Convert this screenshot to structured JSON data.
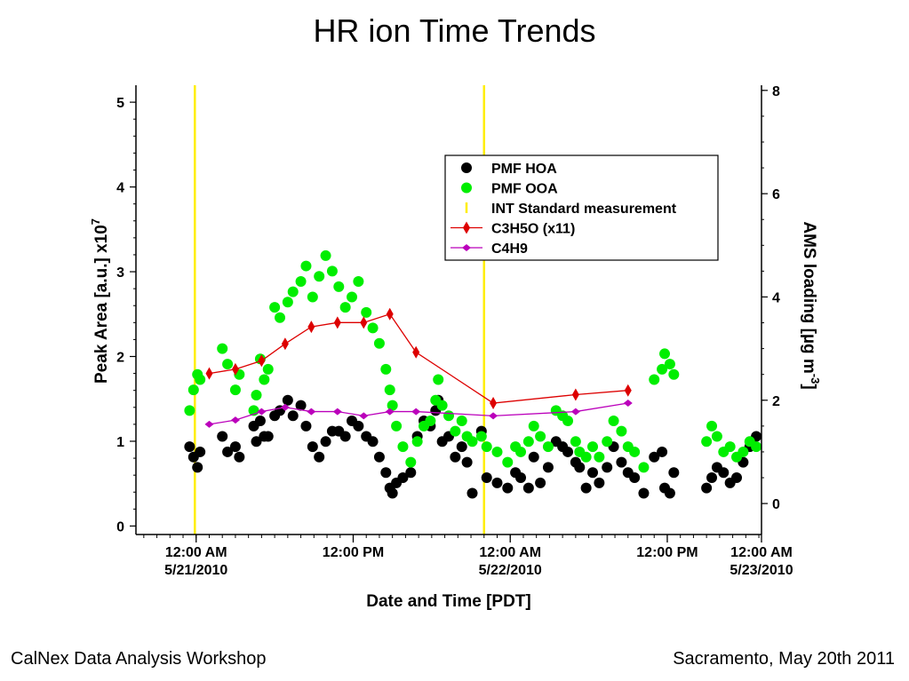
{
  "slide": {
    "title": "HR ion Time Trends",
    "footer_left": "CalNex Data Analysis Workshop",
    "footer_right": "Sacramento, May 20th 2011"
  },
  "colors": {
    "hoa": "#000000",
    "ooa": "#00ee00",
    "int": "#ffee00",
    "c3h5o": "#dd0000",
    "c4h9": "#bb00bb"
  },
  "chart_data": {
    "type": "scatter",
    "xlabel": "Date and Time [PDT]",
    "x_unit": "hours since 5/20/2010 00:00 PDT",
    "xlim": [
      19.4,
      67.2
    ],
    "x_ticks": [
      {
        "x": 24,
        "line1": "12:00 AM",
        "line2": "5/21/2010"
      },
      {
        "x": 36,
        "line1": "12:00 PM",
        "line2": ""
      },
      {
        "x": 48,
        "line1": "12:00 AM",
        "line2": "5/22/2010"
      },
      {
        "x": 60,
        "line1": "12:00 PM",
        "line2": ""
      },
      {
        "x": 72,
        "line1": "12:00 AM",
        "line2": "5/23/2010"
      }
    ],
    "y_left": {
      "label": "Peak Area [a.u.] x10",
      "exponent": "7",
      "lim": [
        -0.1,
        5.2
      ],
      "ticks": [
        0,
        1,
        2,
        3,
        4,
        5
      ]
    },
    "y_right": {
      "label": "AMS loading [µg m",
      "exponent": "-3",
      "label_close": "]",
      "lim": [
        -0.6,
        8.1
      ],
      "ticks": [
        0,
        2,
        4,
        6,
        8
      ]
    },
    "legend": {
      "position": "top-right",
      "entries": [
        {
          "key": "hoa",
          "label": "PMF HOA"
        },
        {
          "key": "ooa",
          "label": "PMF OOA"
        },
        {
          "key": "int",
          "label": "INT Standard measurement"
        },
        {
          "key": "c3h5o",
          "label": "C3H5O (x11)"
        },
        {
          "key": "c4h9",
          "label": "C4H9"
        }
      ]
    },
    "int_standard_x": [
      23.9,
      46.0
    ],
    "series": [
      {
        "name": "PMF HOA",
        "axis": "right",
        "x": [
          23.5,
          23.8,
          24.1,
          24.3,
          26.0,
          26.4,
          27.0,
          27.3,
          28.4,
          28.6,
          28.9,
          29.2,
          29.5,
          30.0,
          30.4,
          31.0,
          31.4,
          32.0,
          32.4,
          32.9,
          33.4,
          33.9,
          34.4,
          34.9,
          35.4,
          35.9,
          36.4,
          37.0,
          37.5,
          38.0,
          38.5,
          38.8,
          39.0,
          39.3,
          39.8,
          40.4,
          40.9,
          41.4,
          41.9,
          42.3,
          42.5,
          42.8,
          43.3,
          43.8,
          44.3,
          44.7,
          45.1,
          45.8,
          46.2,
          47.0,
          47.8,
          48.4,
          48.8,
          49.4,
          49.8,
          50.3,
          50.9,
          51.5,
          52.0,
          52.4,
          53.0,
          53.3,
          53.8,
          54.3,
          54.8,
          55.4,
          55.9,
          56.5,
          57.0,
          57.5,
          58.2,
          59.0,
          59.6,
          59.8,
          60.2,
          60.5,
          63.0,
          63.4,
          63.8,
          64.3,
          64.8,
          65.3,
          65.8,
          66.3,
          66.8
        ],
        "y": [
          1.1,
          0.9,
          0.7,
          1.0,
          1.3,
          1.0,
          1.1,
          0.9,
          1.5,
          1.2,
          1.6,
          1.3,
          1.3,
          1.7,
          1.8,
          2.0,
          1.7,
          1.9,
          1.5,
          1.1,
          0.9,
          1.2,
          1.4,
          1.4,
          1.3,
          1.6,
          1.5,
          1.3,
          1.2,
          0.9,
          0.6,
          0.3,
          0.2,
          0.4,
          0.5,
          0.6,
          1.3,
          1.6,
          1.5,
          1.8,
          2.0,
          1.2,
          1.3,
          0.9,
          1.1,
          0.8,
          0.2,
          1.4,
          0.5,
          0.4,
          0.3,
          0.6,
          0.5,
          0.3,
          0.9,
          0.4,
          0.7,
          1.2,
          1.1,
          1.0,
          0.8,
          0.7,
          0.3,
          0.6,
          0.4,
          0.7,
          1.1,
          0.8,
          0.6,
          0.5,
          0.2,
          0.9,
          1.0,
          0.3,
          0.2,
          0.6,
          0.3,
          0.5,
          0.7,
          0.6,
          0.4,
          0.5,
          0.8,
          1.1,
          1.3
        ]
      },
      {
        "name": "PMF OOA",
        "axis": "right",
        "x": [
          23.5,
          23.8,
          24.1,
          24.3,
          26.0,
          26.4,
          27.0,
          27.3,
          28.4,
          28.6,
          28.9,
          29.2,
          29.5,
          30.0,
          30.4,
          31.0,
          31.4,
          32.0,
          32.4,
          32.9,
          33.4,
          33.9,
          34.4,
          34.9,
          35.4,
          35.9,
          36.4,
          37.0,
          37.5,
          38.0,
          38.5,
          38.8,
          39.0,
          39.3,
          39.8,
          40.4,
          40.9,
          41.4,
          41.9,
          42.3,
          42.5,
          42.8,
          43.3,
          43.8,
          44.3,
          44.7,
          45.1,
          45.8,
          46.2,
          47.0,
          47.8,
          48.4,
          48.8,
          49.4,
          49.8,
          50.3,
          50.9,
          51.5,
          52.0,
          52.4,
          53.0,
          53.3,
          53.8,
          54.3,
          54.8,
          55.4,
          55.9,
          56.5,
          57.0,
          57.5,
          58.2,
          59.0,
          59.6,
          59.8,
          60.2,
          60.5,
          63.0,
          63.4,
          63.8,
          64.3,
          64.8,
          65.3,
          65.8,
          66.3,
          66.8
        ],
        "y": [
          1.8,
          2.2,
          2.5,
          2.4,
          3.0,
          2.7,
          2.2,
          2.5,
          1.8,
          2.1,
          2.8,
          2.4,
          2.6,
          3.8,
          3.6,
          3.9,
          4.1,
          4.3,
          4.6,
          4.0,
          4.4,
          4.8,
          4.5,
          4.2,
          3.8,
          4.0,
          4.3,
          3.7,
          3.4,
          3.1,
          2.6,
          2.2,
          1.9,
          1.5,
          1.1,
          0.8,
          1.2,
          1.5,
          1.6,
          2.0,
          2.4,
          1.9,
          1.7,
          1.4,
          1.6,
          1.3,
          1.2,
          1.3,
          1.1,
          1.0,
          0.8,
          1.1,
          1.0,
          1.2,
          1.5,
          1.3,
          1.1,
          1.8,
          1.7,
          1.6,
          1.2,
          1.0,
          0.9,
          1.1,
          0.9,
          1.2,
          1.6,
          1.4,
          1.1,
          1.0,
          0.7,
          2.4,
          2.6,
          2.9,
          2.7,
          2.5,
          1.2,
          1.5,
          1.3,
          1.0,
          1.1,
          0.9,
          1.0,
          1.2,
          1.1
        ]
      },
      {
        "name": "C3H5O (x11)",
        "axis": "left",
        "x": [
          25.0,
          27.0,
          29.0,
          30.8,
          32.8,
          34.8,
          36.8,
          38.8,
          40.8,
          46.7,
          53.0,
          57.0
        ],
        "y": [
          1.8,
          1.85,
          1.95,
          2.15,
          2.35,
          2.4,
          2.4,
          2.5,
          2.05,
          1.45,
          1.55,
          1.6
        ]
      },
      {
        "name": "C4H9",
        "axis": "left",
        "x": [
          25.0,
          27.0,
          29.0,
          30.8,
          32.8,
          34.8,
          36.8,
          38.8,
          40.8,
          46.7,
          53.0,
          57.0
        ],
        "y": [
          1.2,
          1.25,
          1.35,
          1.4,
          1.35,
          1.35,
          1.3,
          1.35,
          1.35,
          1.3,
          1.35,
          1.45
        ]
      }
    ]
  }
}
